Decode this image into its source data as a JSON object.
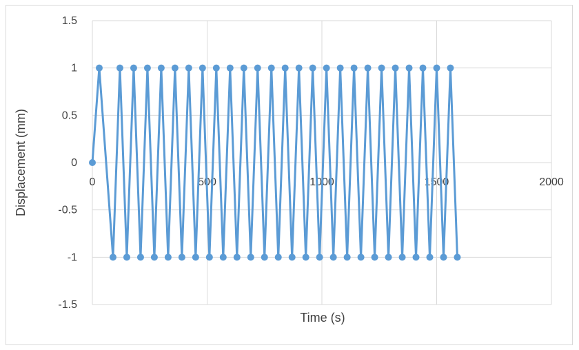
{
  "chart_data": {
    "type": "line",
    "title": "",
    "xlabel": "Time (s)",
    "ylabel": "Displacement (mm)",
    "xlim": [
      0,
      2000
    ],
    "ylim": [
      -1.5,
      1.5
    ],
    "x_ticks": [
      "0",
      "500",
      "1000",
      "1500",
      "2000"
    ],
    "y_ticks": [
      "1.5",
      "1",
      "0.5",
      "0",
      "-0.5",
      "-1",
      "-1.5"
    ],
    "grid": true,
    "legend": "none",
    "series": [
      {
        "color": "#5b9bd5",
        "marker": "circle",
        "x": [
          0,
          30,
          90,
          120,
          150,
          180,
          210,
          240,
          270,
          300,
          330,
          360,
          390,
          420,
          450,
          480,
          510,
          540,
          570,
          600,
          630,
          660,
          690,
          720,
          750,
          780,
          810,
          840,
          870,
          900,
          930,
          960,
          990,
          1020,
          1050,
          1080,
          1110,
          1140,
          1170,
          1200,
          1230,
          1260,
          1290,
          1320,
          1350,
          1380,
          1410,
          1440,
          1470,
          1500,
          1530,
          1560,
          1590
        ],
        "y": [
          0,
          1,
          -1,
          1,
          -1,
          1,
          -1,
          1,
          -1,
          1,
          -1,
          1,
          -1,
          1,
          -1,
          1,
          -1,
          1,
          -1,
          1,
          -1,
          1,
          -1,
          1,
          -1,
          1,
          -1,
          1,
          -1,
          1,
          -1,
          1,
          -1,
          1,
          -1,
          1,
          -1,
          1,
          -1,
          1,
          -1,
          1,
          -1,
          1,
          -1,
          1,
          -1,
          1,
          -1,
          1,
          -1,
          1,
          -1
        ]
      }
    ]
  }
}
